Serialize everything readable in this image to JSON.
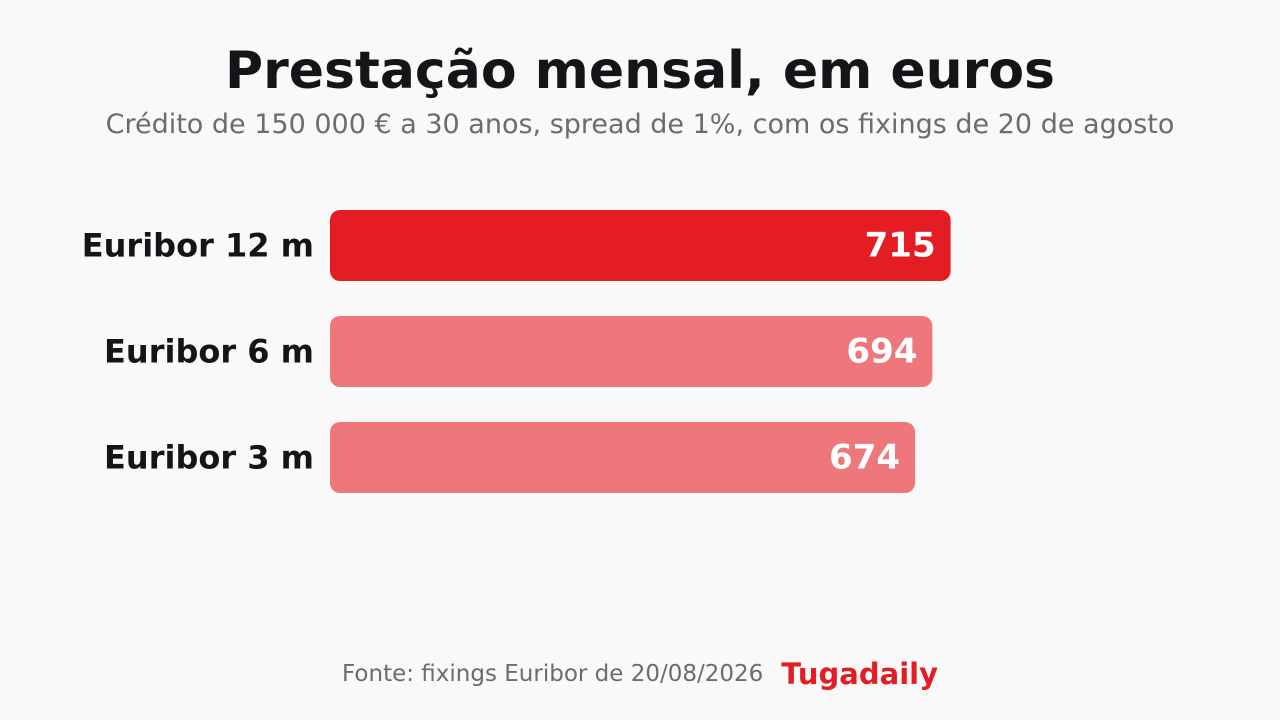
{
  "header": {
    "title": "Prestação mensal, em euros",
    "subtitle": "Crédito de 150 000 € a 30 anos, spread de 1%, com os fixings de 20 de agosto"
  },
  "chart_data": {
    "type": "bar",
    "orientation": "horizontal",
    "title": "Prestação mensal, em euros",
    "subtitle": "Crédito de 150 000 € a 30 anos, spread de 1%, com os fixings de 20 de agosto",
    "categories": [
      "Euribor 12 m",
      "Euribor 6 m",
      "Euribor 3 m"
    ],
    "values": [
      715,
      694,
      674
    ],
    "value_labels": [
      "715",
      "694",
      "674"
    ],
    "highlight_index": 0,
    "colors": {
      "highlight": "#e41c24",
      "normal": "#ee777b"
    },
    "xlim": [
      0,
      900
    ],
    "grid": false,
    "legend": "none"
  },
  "footer": {
    "source": "Fonte: fixings Euribor de 20/08/2026",
    "brand": "Tugadaily",
    "brand_color": "#e41c24"
  }
}
